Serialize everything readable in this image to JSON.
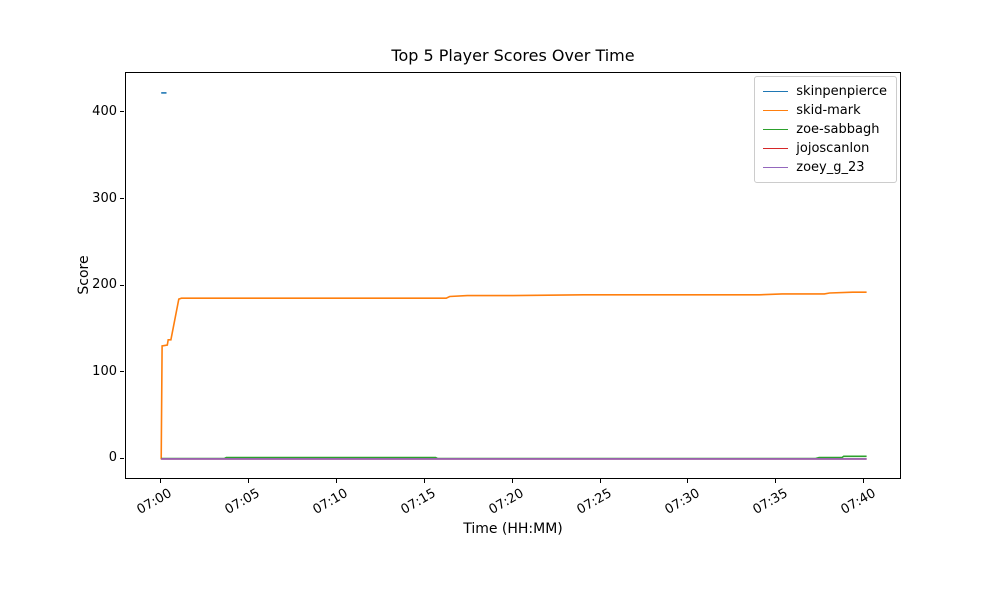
{
  "figure": {
    "title": "Top 5 Player Scores Over Time",
    "xlabel": "Time (HH:MM)",
    "ylabel": "Score"
  },
  "chart_data": {
    "type": "line",
    "title": "Top 5 Player Scores Over Time",
    "xlabel": "Time (HH:MM)",
    "ylabel": "Score",
    "x_unit": "minutes after 07:00",
    "xlim": [
      -2,
      42
    ],
    "ylim": [
      -21.5,
      446
    ],
    "grid": false,
    "legend_position": "upper right",
    "x_ticks": [
      {
        "m": 0,
        "label": "07:00"
      },
      {
        "m": 5,
        "label": "07:05"
      },
      {
        "m": 10,
        "label": "07:10"
      },
      {
        "m": 15,
        "label": "07:15"
      },
      {
        "m": 20,
        "label": "07:20"
      },
      {
        "m": 25,
        "label": "07:25"
      },
      {
        "m": 30,
        "label": "07:30"
      },
      {
        "m": 35,
        "label": "07:35"
      },
      {
        "m": 40,
        "label": "07:40"
      }
    ],
    "y_ticks": [
      {
        "v": 0,
        "label": "0"
      },
      {
        "v": 100,
        "label": "100"
      },
      {
        "v": 200,
        "label": "200"
      },
      {
        "v": 300,
        "label": "300"
      },
      {
        "v": 400,
        "label": "400"
      }
    ],
    "series": [
      {
        "name": "skinpenpierce",
        "color": "#1f77b4",
        "points": [
          [
            0,
            423
          ],
          [
            0.3,
            423
          ]
        ]
      },
      {
        "name": "skid-mark",
        "color": "#ff7f0e",
        "points": [
          [
            0,
            0
          ],
          [
            0.05,
            131
          ],
          [
            0.35,
            132
          ],
          [
            0.4,
            138
          ],
          [
            0.55,
            138
          ],
          [
            1.0,
            185
          ],
          [
            1.15,
            186
          ],
          [
            16.2,
            186
          ],
          [
            16.4,
            188
          ],
          [
            17.4,
            189
          ],
          [
            20,
            189
          ],
          [
            24,
            190
          ],
          [
            34,
            190
          ],
          [
            35.3,
            191
          ],
          [
            37.7,
            191
          ],
          [
            38,
            192
          ],
          [
            39.3,
            193
          ],
          [
            40.1,
            193
          ]
        ]
      },
      {
        "name": "zoe-sabbagh",
        "color": "#2ca02c",
        "points": [
          [
            0,
            1
          ],
          [
            3.6,
            1
          ],
          [
            3.7,
            2
          ],
          [
            15.6,
            2
          ],
          [
            15.7,
            1
          ],
          [
            37.2,
            1
          ],
          [
            37.4,
            2
          ],
          [
            38.7,
            2
          ],
          [
            38.8,
            3.5
          ],
          [
            40.1,
            3.5
          ]
        ]
      },
      {
        "name": "jojoscanlon",
        "color": "#d62728",
        "points": [
          [
            0,
            0.5
          ],
          [
            40.1,
            0.5
          ]
        ]
      },
      {
        "name": "zoey_g_23",
        "color": "#9467bd",
        "points": [
          [
            0,
            0.5
          ],
          [
            40.1,
            0.5
          ]
        ]
      }
    ]
  }
}
